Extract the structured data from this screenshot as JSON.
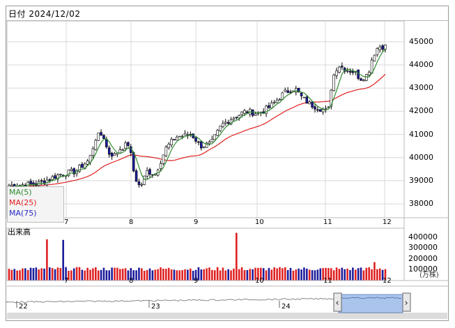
{
  "header": {
    "date_label": "日付 2024/12/02"
  },
  "price_panel": {
    "y_labels": [
      "45000",
      "44000",
      "43000",
      "42000",
      "41000",
      "40000",
      "39000",
      "38000"
    ],
    "y_values": [
      45000,
      44000,
      43000,
      42000,
      41000,
      40000,
      39000,
      38000
    ],
    "month_labels": [
      "7",
      "8",
      "9",
      "10",
      "11",
      "12"
    ],
    "legend": [
      {
        "label": "MA(5)",
        "color": "#2e8b2e"
      },
      {
        "label": "MA(25)",
        "color": "#e02020"
      },
      {
        "label": "MA(75)",
        "color": "#2828c8"
      }
    ]
  },
  "volume_panel": {
    "title": "出来高",
    "y_labels": [
      "400000",
      "300000",
      "200000",
      "100000"
    ],
    "unit": "(万株)",
    "month_labels": [
      "7",
      "8",
      "9",
      "10",
      "11",
      "12"
    ]
  },
  "navigator": {
    "year_labels": [
      "22",
      "23",
      "24"
    ],
    "left_handle_icon": "chevron-left-icon",
    "right_handle_icon": "chevron-right-icon"
  },
  "colors": {
    "up_candle": "#ffffff",
    "down_candle": "#1c1c9c",
    "up_volume": "#e02020",
    "down_volume": "#1c1c9c",
    "ma5": "#2e8b2e",
    "ma25": "#e02020",
    "ma75": "#2828c8",
    "grid": "#d8d8d8",
    "nav_fill": "#aac4ec"
  }
}
